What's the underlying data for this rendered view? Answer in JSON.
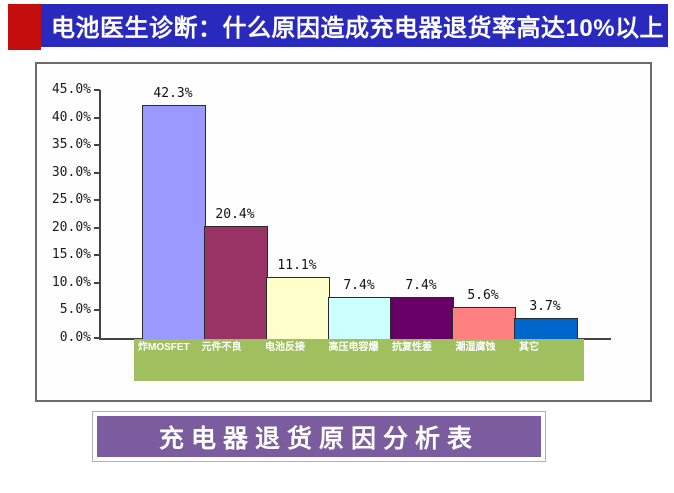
{
  "title": {
    "text": "电池医生诊断：什么原因造成充电器退货率高达10%以上"
  },
  "footer": {
    "banner_text": "充电器退货原因分析表"
  },
  "colors": {
    "title_bar_bg": "#2929BE",
    "title_accent_red": "#C40D0D",
    "title_text": "#FFFFFF",
    "chart_border": "#6B6B6B",
    "axis_color": "#444444",
    "category_box_bg": "#A0C060",
    "category_text": "#FFFFFF",
    "banner_bg": "#7A5C9F",
    "banner_text_color": "#FFFFFF"
  },
  "chart_data": {
    "type": "bar",
    "title": "",
    "categories": [
      "炸MOSFET",
      "元件不良",
      "电池反接",
      "高压电容爆",
      "抗复性差",
      "潮湿腐蚀",
      "其它"
    ],
    "values": [
      42.3,
      20.4,
      11.1,
      7.4,
      7.4,
      5.6,
      3.7
    ],
    "data_labels": [
      "42.3%",
      "20.4%",
      "11.1%",
      "7.4%",
      "7.4%",
      "5.6%",
      "3.7%"
    ],
    "bar_colors": [
      "#9999FF",
      "#993366",
      "#FFFFCC",
      "#CCFFFF",
      "#660066",
      "#FF8080",
      "#0066CC"
    ],
    "y_ticks": [
      "45.0%",
      "40.0%",
      "35.0%",
      "30.0%",
      "25.0%",
      "20.0%",
      "15.0%",
      "10.0%",
      "5.0%",
      "0.0%"
    ],
    "ylim": [
      0,
      45
    ],
    "xlabel": "",
    "ylabel": "",
    "grid": false,
    "legend": false
  }
}
